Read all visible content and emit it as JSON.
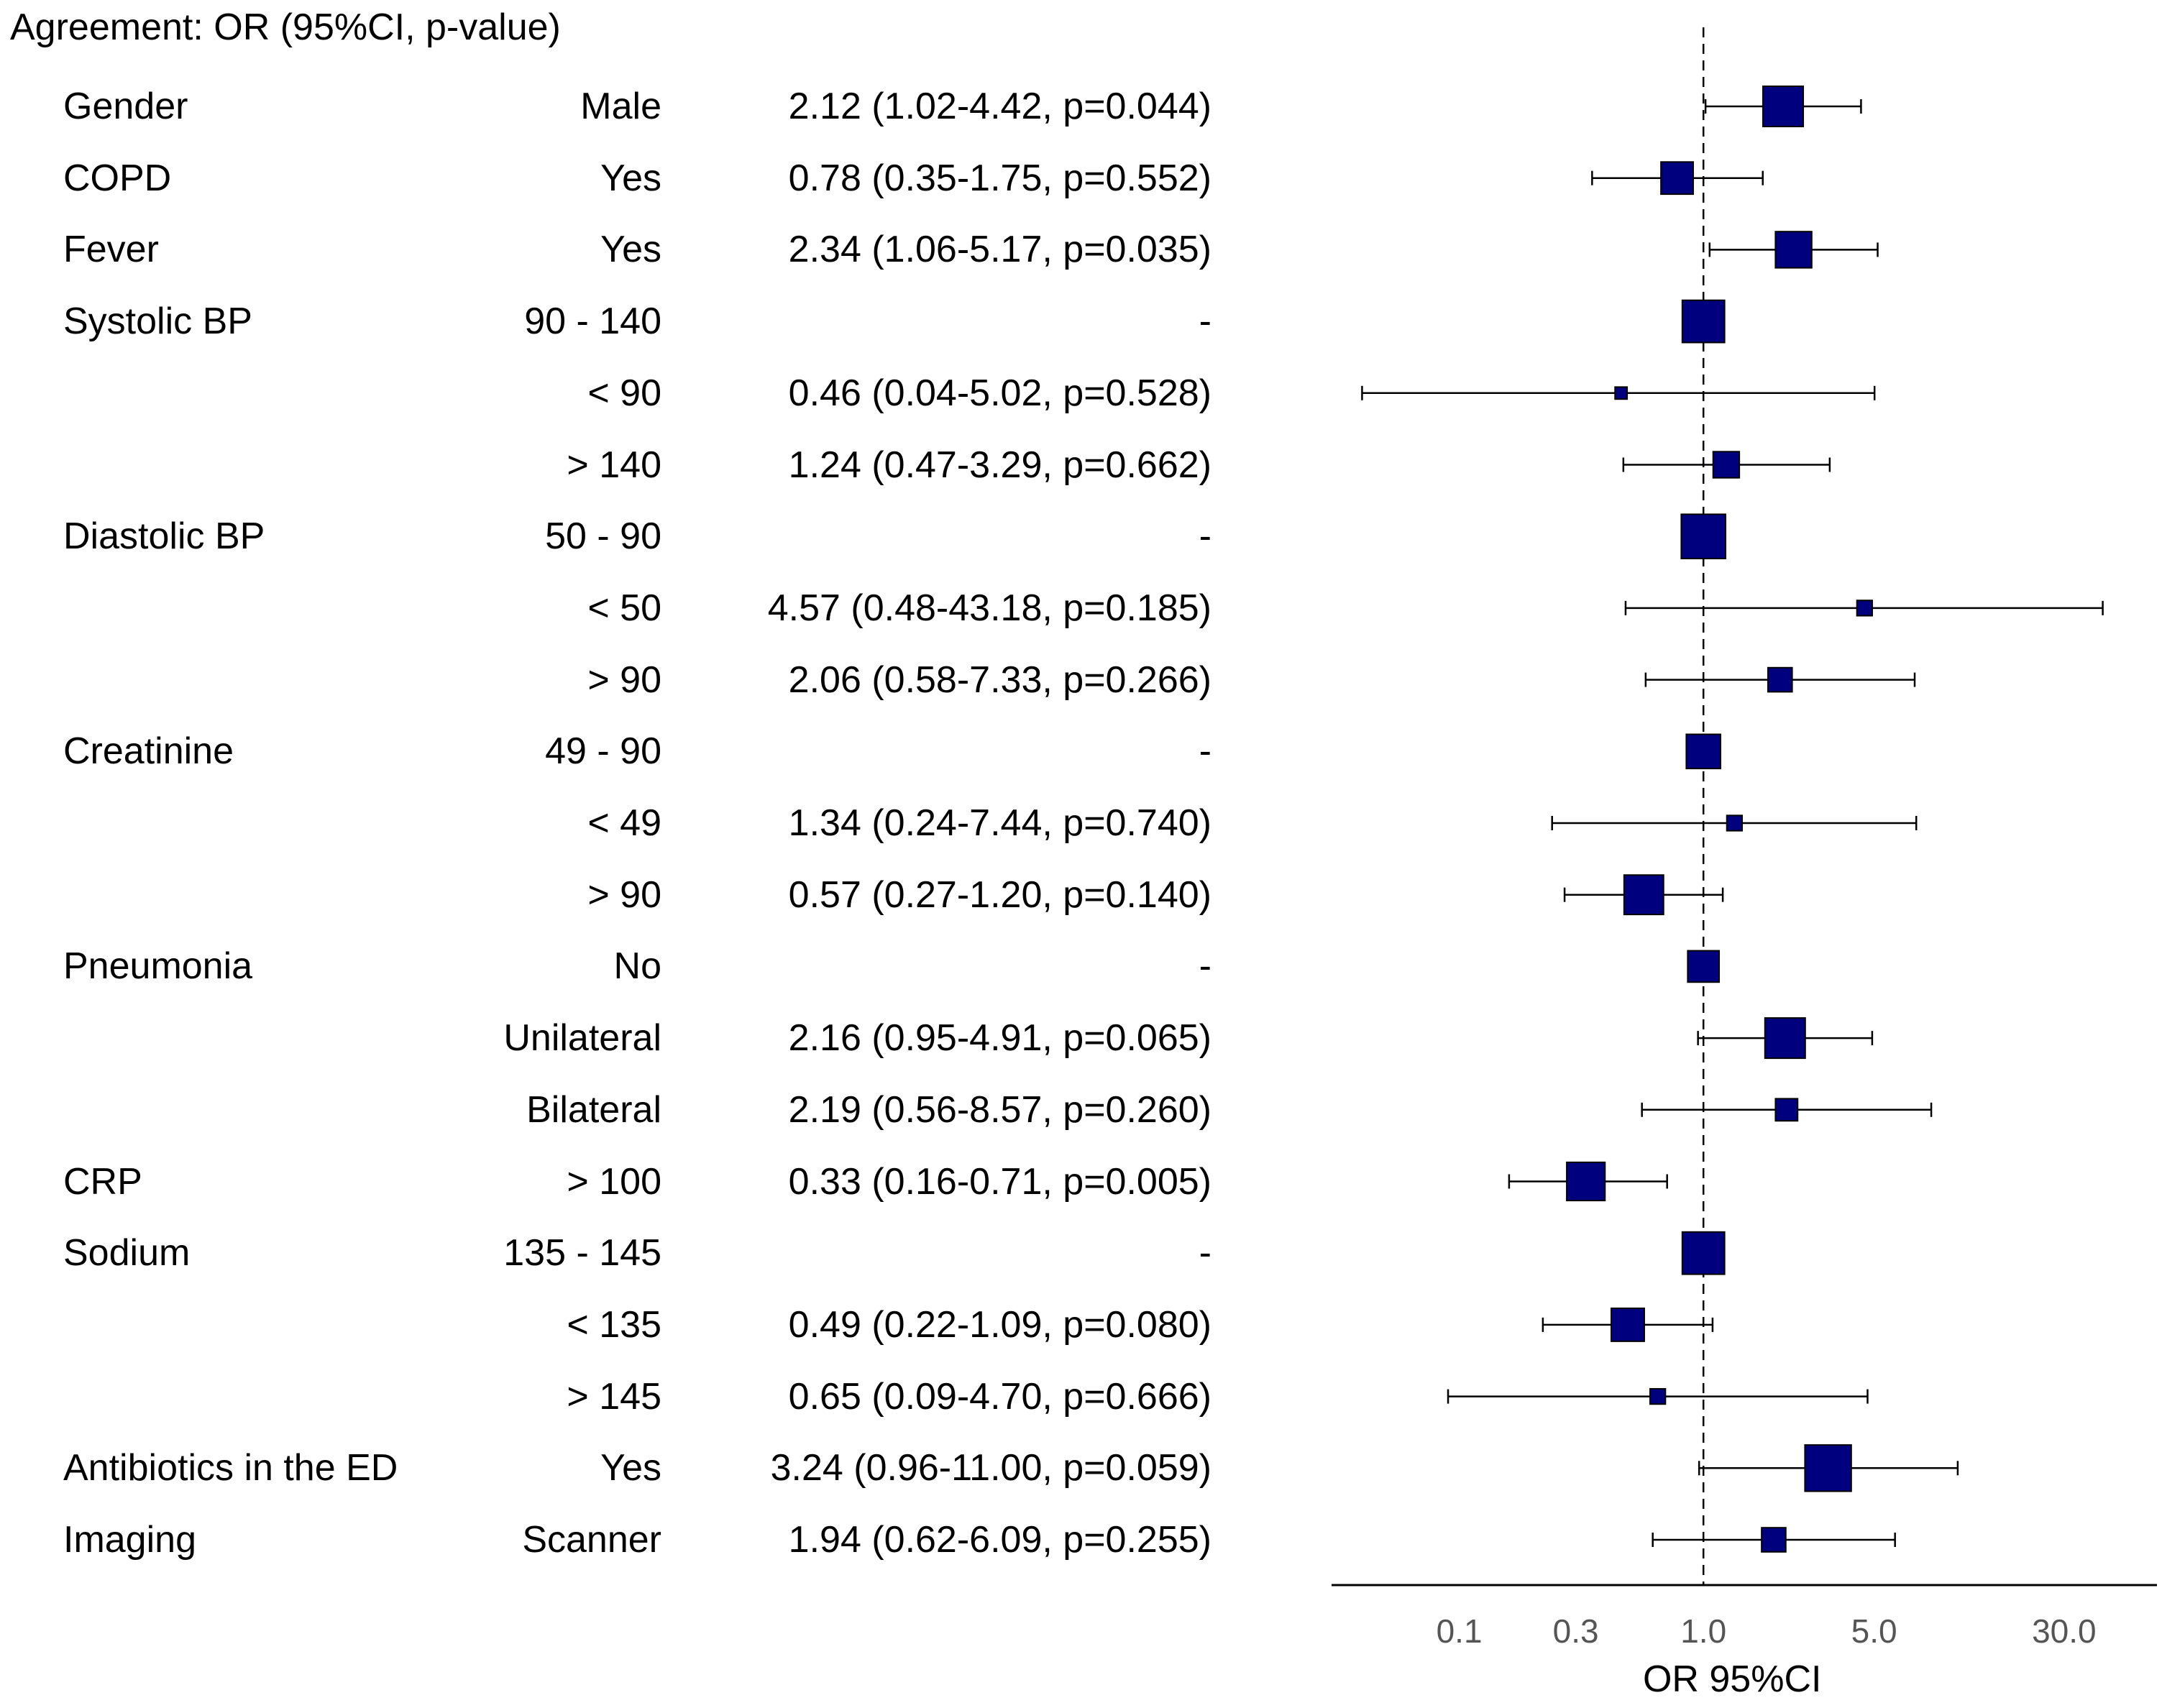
{
  "title": "Agreement: OR (95%CI, p-value)",
  "chart_data": {
    "type": "forest",
    "x_scale": "log",
    "xlim": [
      0.03,
      72
    ],
    "xticks": [
      0.1,
      0.3,
      1.0,
      5.0,
      30.0
    ],
    "xtick_labels": [
      "0.1",
      "0.3",
      "1.0",
      "5.0",
      "30.0"
    ],
    "xlabel": "OR 95%CI",
    "reference_line": 1.0,
    "marker_color": "#00007f",
    "rows": [
      {
        "variable": "Gender",
        "level": "Male",
        "or": 2.12,
        "lo": 1.02,
        "hi": 4.42,
        "text": "2.12 (1.02-4.42, p=0.044)",
        "weight": 1.0
      },
      {
        "variable": "COPD",
        "level": "Yes",
        "or": 0.78,
        "lo": 0.35,
        "hi": 1.75,
        "text": "0.78 (0.35-1.75, p=0.552)",
        "weight": 0.8
      },
      {
        "variable": "Fever",
        "level": "Yes",
        "or": 2.34,
        "lo": 1.06,
        "hi": 5.17,
        "text": "2.34 (1.06-5.17, p=0.035)",
        "weight": 0.9
      },
      {
        "variable": "Systolic BP",
        "level": "90 - 140",
        "or": 1.0,
        "lo": null,
        "hi": null,
        "text": "-",
        "weight": 1.05
      },
      {
        "variable": "",
        "level": "< 90",
        "or": 0.46,
        "lo": 0.04,
        "hi": 5.02,
        "text": "0.46 (0.04-5.02, p=0.528)",
        "weight": 0.3
      },
      {
        "variable": "",
        "level": "> 140",
        "or": 1.24,
        "lo": 0.47,
        "hi": 3.29,
        "text": "1.24 (0.47-3.29, p=0.662)",
        "weight": 0.65
      },
      {
        "variable": "Diastolic BP",
        "level": "50 - 90",
        "or": 1.0,
        "lo": null,
        "hi": null,
        "text": "-",
        "weight": 1.1
      },
      {
        "variable": "",
        "level": "< 50",
        "or": 4.57,
        "lo": 0.48,
        "hi": 43.18,
        "text": "4.57 (0.48-43.18, p=0.185)",
        "weight": 0.38
      },
      {
        "variable": "",
        "level": "> 90",
        "or": 2.06,
        "lo": 0.58,
        "hi": 7.33,
        "text": "2.06 (0.58-7.33, p=0.266)",
        "weight": 0.6
      },
      {
        "variable": "Creatinine",
        "level": "49 - 90",
        "or": 1.0,
        "lo": null,
        "hi": null,
        "text": "-",
        "weight": 0.85
      },
      {
        "variable": "",
        "level": "< 49",
        "or": 1.34,
        "lo": 0.24,
        "hi": 7.44,
        "text": "1.34 (0.24-7.44, p=0.740)",
        "weight": 0.38
      },
      {
        "variable": "",
        "level": "> 90",
        "or": 0.57,
        "lo": 0.27,
        "hi": 1.2,
        "text": "0.57 (0.27-1.20, p=0.140)",
        "weight": 0.98
      },
      {
        "variable": "Pneumonia",
        "level": "No",
        "or": 1.0,
        "lo": null,
        "hi": null,
        "text": "-",
        "weight": 0.78
      },
      {
        "variable": "",
        "level": "Unilateral",
        "or": 2.16,
        "lo": 0.95,
        "hi": 4.91,
        "text": "2.16 (0.95-4.91, p=0.065)",
        "weight": 1.0
      },
      {
        "variable": "",
        "level": "Bilateral",
        "or": 2.19,
        "lo": 0.56,
        "hi": 8.57,
        "text": "2.19 (0.56-8.57, p=0.260)",
        "weight": 0.55
      },
      {
        "variable": "CRP",
        "level": "> 100",
        "or": 0.33,
        "lo": 0.16,
        "hi": 0.71,
        "text": "0.33 (0.16-0.71, p=0.005)",
        "weight": 0.95
      },
      {
        "variable": "Sodium",
        "level": "135 - 145",
        "or": 1.0,
        "lo": null,
        "hi": null,
        "text": "-",
        "weight": 1.05
      },
      {
        "variable": "",
        "level": "< 135",
        "or": 0.49,
        "lo": 0.22,
        "hi": 1.09,
        "text": "0.49 (0.22-1.09, p=0.080)",
        "weight": 0.82
      },
      {
        "variable": "",
        "level": "> 145",
        "or": 0.65,
        "lo": 0.09,
        "hi": 4.7,
        "text": "0.65 (0.09-4.70, p=0.666)",
        "weight": 0.38
      },
      {
        "variable": "Antibiotics in the ED",
        "level": "Yes",
        "or": 3.24,
        "lo": 0.96,
        "hi": 11.0,
        "text": "3.24 (0.96-11.00, p=0.059)",
        "weight": 1.15
      },
      {
        "variable": "Imaging",
        "level": "Scanner",
        "or": 1.94,
        "lo": 0.62,
        "hi": 6.09,
        "text": "1.94 (0.62-6.09, p=0.255)",
        "weight": 0.6
      }
    ]
  }
}
